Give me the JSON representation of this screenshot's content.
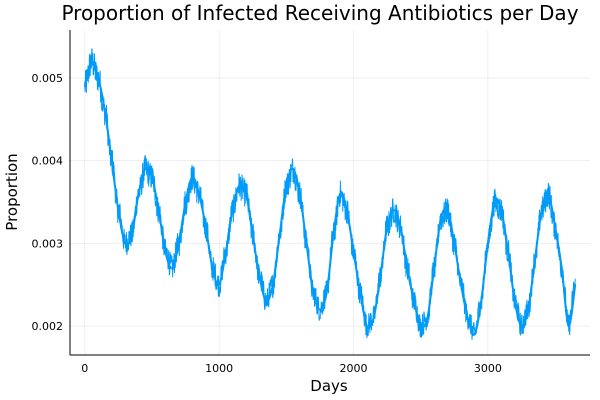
{
  "chart_data": {
    "type": "line",
    "title": "Proportion of Infected Receiving Antibiotics per Day",
    "xlabel": "Days",
    "ylabel": "Proportion",
    "xlim": [
      -110,
      3760
    ],
    "ylim": [
      0.00165,
      0.00558
    ],
    "x_ticks": [
      0,
      1000,
      2000,
      3000
    ],
    "x_tick_labels": [
      "0",
      "1000",
      "2000",
      "3000"
    ],
    "y_ticks": [
      0.002,
      0.003,
      0.004,
      0.005
    ],
    "y_tick_labels": [
      "0.002",
      "0.003",
      "0.004",
      "0.005"
    ],
    "grid": true,
    "legend": "none",
    "series": [
      {
        "color": "#009af9",
        "x": [
          0,
          50,
          100,
          150,
          200,
          250,
          300,
          350,
          400,
          450,
          500,
          550,
          600,
          650,
          700,
          750,
          800,
          850,
          900,
          950,
          1000,
          1050,
          1100,
          1150,
          1200,
          1250,
          1300,
          1350,
          1400,
          1450,
          1500,
          1550,
          1600,
          1650,
          1700,
          1750,
          1800,
          1850,
          1900,
          1950,
          2000,
          2050,
          2100,
          2150,
          2200,
          2250,
          2300,
          2350,
          2400,
          2450,
          2500,
          2550,
          2600,
          2650,
          2700,
          2750,
          2800,
          2850,
          2900,
          2950,
          3000,
          3050,
          3100,
          3150,
          3200,
          3250,
          3300,
          3350,
          3400,
          3450,
          3500,
          3550,
          3600,
          3650
        ],
        "y": [
          0.0049,
          0.0052,
          0.005,
          0.0046,
          0.004,
          0.0034,
          0.003,
          0.0031,
          0.0036,
          0.0039,
          0.0038,
          0.0034,
          0.0029,
          0.0027,
          0.003,
          0.0035,
          0.0038,
          0.0036,
          0.0032,
          0.0027,
          0.0025,
          0.0029,
          0.0034,
          0.0037,
          0.0036,
          0.0031,
          0.0026,
          0.0023,
          0.0025,
          0.0031,
          0.0037,
          0.0039,
          0.0036,
          0.003,
          0.0024,
          0.0022,
          0.0024,
          0.0031,
          0.0036,
          0.0034,
          0.0029,
          0.0024,
          0.002,
          0.0021,
          0.0026,
          0.0032,
          0.0034,
          0.0032,
          0.0027,
          0.0023,
          0.002,
          0.0021,
          0.0027,
          0.0033,
          0.0034,
          0.003,
          0.0025,
          0.0021,
          0.0019,
          0.0023,
          0.003,
          0.0035,
          0.0034,
          0.0029,
          0.0023,
          0.002,
          0.0022,
          0.0028,
          0.0034,
          0.0036,
          0.0032,
          0.0027,
          0.002,
          0.0025
        ]
      }
    ]
  }
}
